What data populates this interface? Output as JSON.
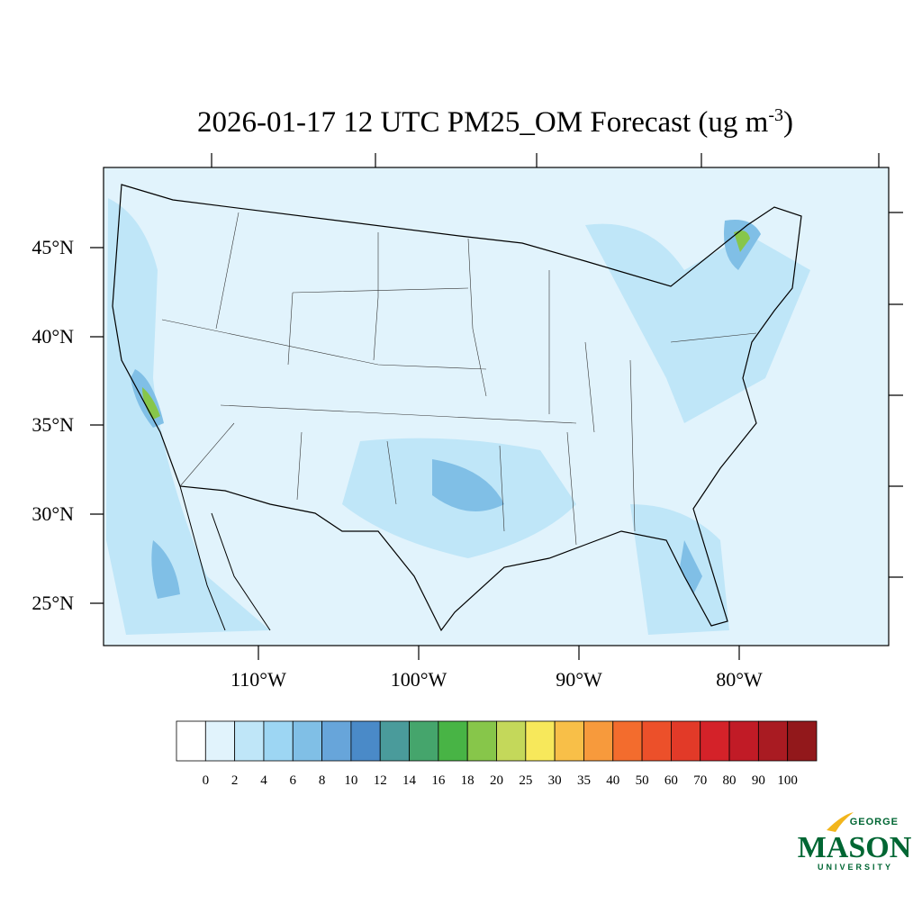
{
  "title": {
    "main": "2026-01-17 12 UTC PM25_OM Forecast (ug m",
    "superscript": "-3",
    "close": ")"
  },
  "map": {
    "lat_labels": [
      "45°N",
      "40°N",
      "35°N",
      "30°N",
      "25°N"
    ],
    "lon_labels": [
      "110°W",
      "100°W",
      "90°W",
      "80°W"
    ]
  },
  "colorbar": {
    "levels": [
      0,
      2,
      4,
      6,
      8,
      10,
      12,
      14,
      16,
      18,
      20,
      25,
      30,
      35,
      40,
      50,
      60,
      70,
      80,
      90,
      100
    ],
    "colors": [
      "#ffffff",
      "#e1f3fc",
      "#bfe6f8",
      "#9dd6f3",
      "#80bfe6",
      "#67a5da",
      "#4a8ac8",
      "#4a9b9b",
      "#45a56c",
      "#48b445",
      "#87c64a",
      "#c4d85a",
      "#f7e85b",
      "#f8bf48",
      "#f79a3c",
      "#f36c2d",
      "#ec502a",
      "#e23a28",
      "#d42229",
      "#c11b26",
      "#a91b22",
      "#92181b"
    ]
  },
  "logo": {
    "top": "GEORGE",
    "main": "MASON",
    "bottom": "UNIVERSITY"
  }
}
